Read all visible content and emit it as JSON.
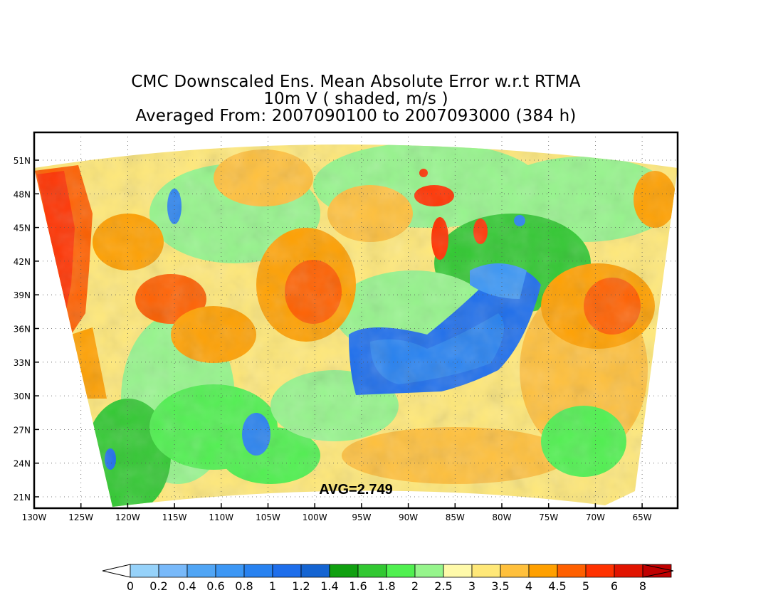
{
  "title": {
    "line1": "CMC Downscaled Ens. Mean Absolute Error w.r.t RTMA",
    "line2": "10m V ( shaded, m/s )",
    "line3": "Averaged From: 2007090100 to 2007093000 (384 h)"
  },
  "map": {
    "avg_label": "AVG=2.749",
    "lon_ticks": [
      "130W",
      "125W",
      "120W",
      "115W",
      "110W",
      "105W",
      "100W",
      "95W",
      "90W",
      "85W",
      "80W",
      "75W",
      "70W",
      "65W"
    ],
    "lat_ticks": [
      "51N",
      "48N",
      "45N",
      "42N",
      "39N",
      "36N",
      "33N",
      "30N",
      "27N",
      "24N",
      "21N"
    ],
    "grid": "dotted"
  },
  "colorbar": {
    "labels": [
      "0",
      "0.2",
      "0.4",
      "0.6",
      "0.8",
      "1",
      "1.2",
      "1.4",
      "1.6",
      "1.8",
      "2",
      "2.5",
      "3",
      "3.5",
      "4",
      "4.5",
      "5",
      "6",
      "8"
    ],
    "colors": [
      "#96d2fa",
      "#78b9fa",
      "#50a5f5",
      "#3c97f5",
      "#2882f0",
      "#1e6eeb",
      "#1464d2",
      "#10a010",
      "#32c832",
      "#50f050",
      "#96f58c",
      "#fffaaa",
      "#ffe878",
      "#ffc03c",
      "#ffa000",
      "#ff6000",
      "#ff3200",
      "#e11400",
      "#c00000"
    ]
  }
}
